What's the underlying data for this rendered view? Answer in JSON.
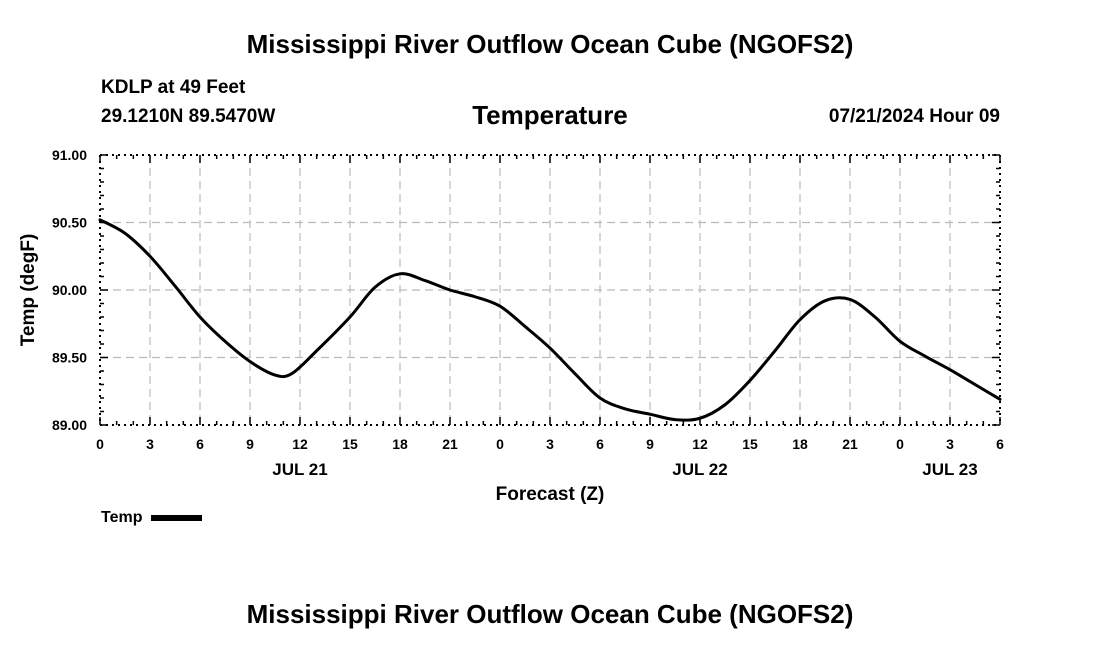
{
  "header": {
    "title": "Mississippi River Outflow Ocean Cube (NGOFS2)",
    "station": "KDLP at 49 Feet",
    "coords": "29.1210N  89.5470W",
    "subtitle": "Temperature",
    "datetime": "07/21/2024 Hour 09"
  },
  "footer": {
    "title": "Mississippi River Outflow Ocean Cube (NGOFS2)"
  },
  "legend": {
    "label": "Temp"
  },
  "chart_data": {
    "type": "line",
    "title": "Temperature",
    "xlabel": "Forecast (Z)",
    "ylabel": "Temp (degF)",
    "xlim": [
      0,
      54
    ],
    "ylim": [
      89.0,
      91.0
    ],
    "grid": true,
    "x_tick_values": [
      0,
      3,
      6,
      9,
      12,
      15,
      18,
      21,
      24,
      27,
      30,
      33,
      36,
      39,
      42,
      45,
      48,
      51,
      54
    ],
    "x_tick_labels": [
      "0",
      "3",
      "6",
      "9",
      "12",
      "15",
      "18",
      "21",
      "0",
      "3",
      "6",
      "9",
      "12",
      "15",
      "18",
      "21",
      "0",
      "3",
      "6"
    ],
    "day_labels": [
      {
        "x": 12,
        "label": "JUL 21"
      },
      {
        "x": 36,
        "label": "JUL 22"
      },
      {
        "x": 51,
        "label": "JUL 23"
      }
    ],
    "y_tick_values": [
      89.0,
      89.5,
      90.0,
      90.5,
      91.0
    ],
    "y_tick_labels": [
      "89.00",
      "89.50",
      "90.00",
      "90.50",
      "91.00"
    ],
    "series": [
      {
        "name": "Temp",
        "x": [
          0,
          1.5,
          3,
          4.5,
          6,
          7.5,
          9,
          10.5,
          11.5,
          13,
          15,
          16.5,
          18,
          19.5,
          21,
          22.5,
          24,
          25.5,
          27,
          28.5,
          30,
          31.5,
          33,
          34.5,
          36,
          37.5,
          39,
          40.5,
          42,
          43.5,
          45,
          46.5,
          48,
          49.5,
          51,
          52.5,
          54
        ],
        "values": [
          90.52,
          90.42,
          90.25,
          90.03,
          89.8,
          89.62,
          89.47,
          89.37,
          89.38,
          89.55,
          89.8,
          90.02,
          90.12,
          90.07,
          90.0,
          89.95,
          89.88,
          89.73,
          89.57,
          89.38,
          89.2,
          89.12,
          89.08,
          89.04,
          89.05,
          89.15,
          89.33,
          89.55,
          89.78,
          89.92,
          89.93,
          89.8,
          89.62,
          89.51,
          89.41,
          89.3,
          89.19
        ]
      }
    ]
  }
}
